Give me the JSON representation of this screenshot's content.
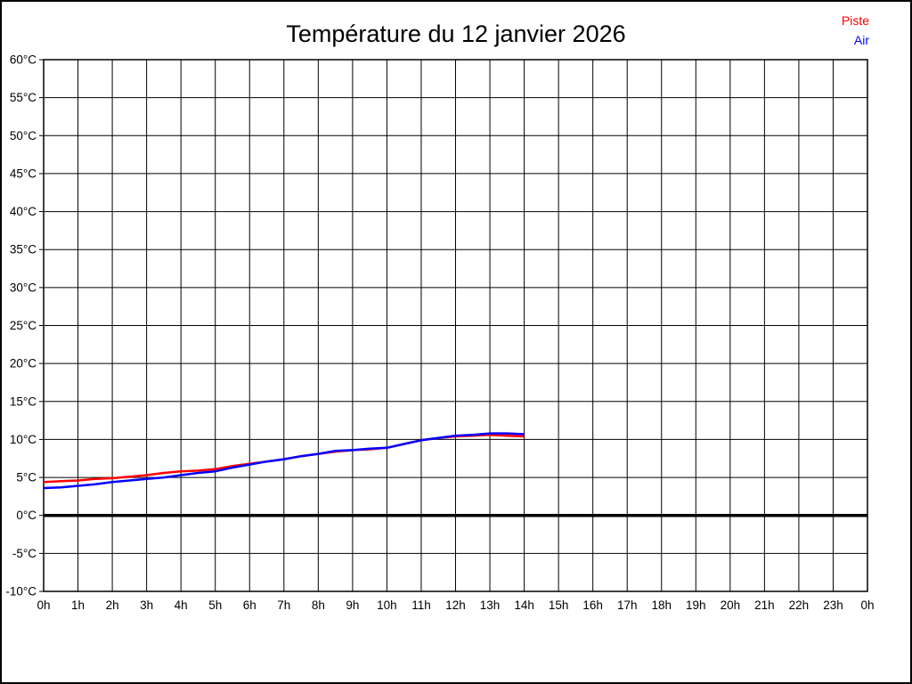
{
  "page": {
    "title": "Température du 12 janvier 2026"
  },
  "chart_data": {
    "type": "line",
    "title": "Température du 12 janvier 2026",
    "xlabel": "",
    "ylabel": "",
    "x_unit": "hours",
    "xlim": [
      0,
      24
    ],
    "ylim": [
      -10,
      60
    ],
    "grid": true,
    "legend_position": "top-right",
    "zero_line": {
      "value": 0,
      "color": "#000000",
      "width": 3.5
    },
    "y_ticks": [
      {
        "value": 60,
        "label": "60°C"
      },
      {
        "value": 55,
        "label": "55°C"
      },
      {
        "value": 50,
        "label": "50°C"
      },
      {
        "value": 45,
        "label": "45°C"
      },
      {
        "value": 40,
        "label": "40°C"
      },
      {
        "value": 35,
        "label": "35°C"
      },
      {
        "value": 30,
        "label": "30°C"
      },
      {
        "value": 25,
        "label": "25°C"
      },
      {
        "value": 20,
        "label": "20°C"
      },
      {
        "value": 15,
        "label": "15°C"
      },
      {
        "value": 10,
        "label": "10°C"
      },
      {
        "value": 5,
        "label": "5°C"
      },
      {
        "value": 0,
        "label": "0°C"
      },
      {
        "value": -5,
        "label": "-5°C"
      },
      {
        "value": -10,
        "label": "-10°C"
      }
    ],
    "x_ticks": [
      {
        "value": 0,
        "label": "0h"
      },
      {
        "value": 1,
        "label": "1h"
      },
      {
        "value": 2,
        "label": "2h"
      },
      {
        "value": 3,
        "label": "3h"
      },
      {
        "value": 4,
        "label": "4h"
      },
      {
        "value": 5,
        "label": "5h"
      },
      {
        "value": 6,
        "label": "6h"
      },
      {
        "value": 7,
        "label": "7h"
      },
      {
        "value": 8,
        "label": "8h"
      },
      {
        "value": 9,
        "label": "9h"
      },
      {
        "value": 10,
        "label": "10h"
      },
      {
        "value": 11,
        "label": "11h"
      },
      {
        "value": 12,
        "label": "12h"
      },
      {
        "value": 13,
        "label": "13h"
      },
      {
        "value": 14,
        "label": "14h"
      },
      {
        "value": 15,
        "label": "15h"
      },
      {
        "value": 16,
        "label": "16h"
      },
      {
        "value": 17,
        "label": "17h"
      },
      {
        "value": 18,
        "label": "18h"
      },
      {
        "value": 19,
        "label": "19h"
      },
      {
        "value": 20,
        "label": "20h"
      },
      {
        "value": 21,
        "label": "21h"
      },
      {
        "value": 22,
        "label": "22h"
      },
      {
        "value": 23,
        "label": "23h"
      },
      {
        "value": 24,
        "label": "0h"
      }
    ],
    "series": [
      {
        "name": "Piste",
        "color": "#ff0000",
        "x": [
          0,
          0.5,
          1,
          1.5,
          2,
          2.5,
          3,
          3.5,
          4,
          4.5,
          5,
          5.5,
          6,
          6.5,
          7,
          7.5,
          8,
          8.5,
          9,
          9.5,
          10,
          10.5,
          11,
          11.5,
          12,
          12.5,
          13,
          13.5,
          14
        ],
        "values": [
          4.4,
          4.5,
          4.6,
          4.8,
          4.9,
          5.1,
          5.3,
          5.6,
          5.8,
          5.9,
          6.1,
          6.5,
          6.8,
          7.1,
          7.4,
          7.8,
          8.1,
          8.4,
          8.6,
          8.7,
          8.9,
          9.4,
          9.9,
          10.2,
          10.4,
          10.5,
          10.6,
          10.5,
          10.4
        ]
      },
      {
        "name": "Air",
        "color": "#0000ff",
        "x": [
          0,
          0.5,
          1,
          1.5,
          2,
          2.5,
          3,
          3.5,
          4,
          4.5,
          5,
          5.5,
          6,
          6.5,
          7,
          7.5,
          8,
          8.5,
          9,
          9.5,
          10,
          10.5,
          11,
          11.5,
          12,
          12.5,
          13,
          13.5,
          14
        ],
        "values": [
          3.6,
          3.7,
          3.9,
          4.1,
          4.4,
          4.6,
          4.8,
          5.0,
          5.3,
          5.6,
          5.8,
          6.3,
          6.7,
          7.1,
          7.4,
          7.8,
          8.1,
          8.5,
          8.6,
          8.8,
          8.9,
          9.4,
          9.9,
          10.2,
          10.5,
          10.6,
          10.8,
          10.8,
          10.7
        ]
      }
    ]
  }
}
